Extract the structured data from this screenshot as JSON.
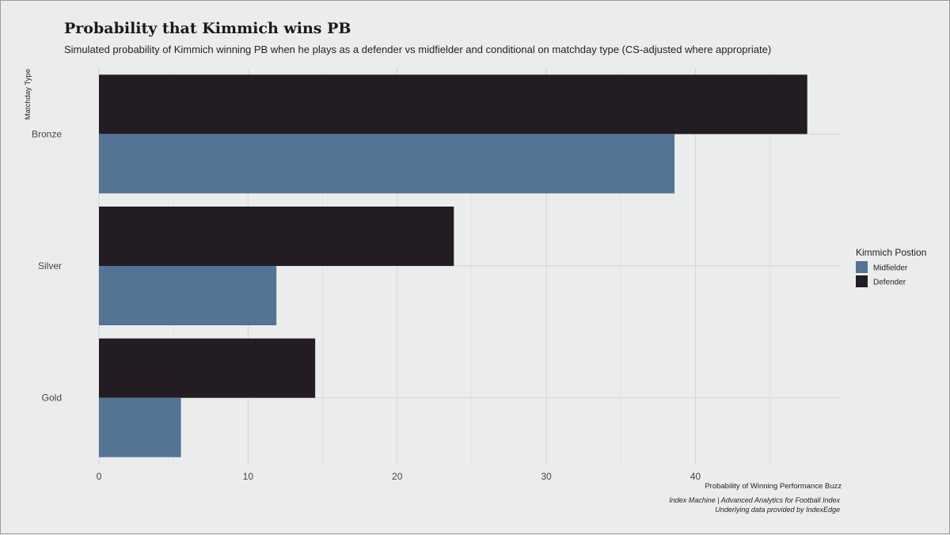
{
  "chart_data": {
    "type": "bar",
    "orientation": "horizontal",
    "title": "Probability that Kimmich wins PB",
    "subtitle": "Simulated probability of Kimmich winning PB when he plays as a defender vs midfielder and conditional on matchday type (CS-adjusted where appropriate)",
    "xlabel": "Probability of Winning Performance Buzz",
    "ylabel": "Matchday Type",
    "categories": [
      "Bronze",
      "Silver",
      "Gold"
    ],
    "series": [
      {
        "name": "Defender",
        "color": "#231c22",
        "values": [
          47.5,
          23.8,
          14.5
        ]
      },
      {
        "name": "Midfielder",
        "color": "#547496",
        "values": [
          38.6,
          11.9,
          5.5
        ]
      }
    ],
    "xlim": [
      0,
      49.8
    ],
    "xticks": [
      0,
      10,
      20,
      30,
      40
    ],
    "grid": true,
    "legend": {
      "title": "Kimmich Postion",
      "placement": "right",
      "entries": [
        {
          "label": "Midfielder",
          "color": "#547496"
        },
        {
          "label": "Defender",
          "color": "#231c22"
        }
      ]
    },
    "caption": {
      "line1": "Index Machine | Advanced Analytics for Football Index",
      "line2": "Underlying data provided by IndexEdge"
    }
  }
}
